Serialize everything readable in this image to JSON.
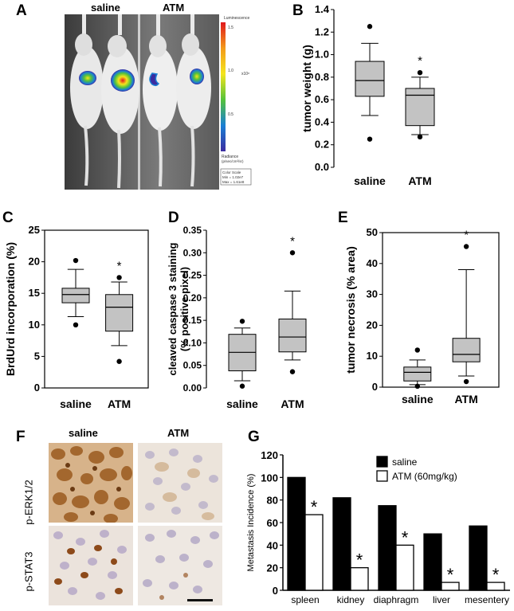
{
  "panels": {
    "A": {
      "letter": "A",
      "group_labels": [
        "saline",
        "ATM"
      ],
      "colorbar": {
        "title": "Luminescence",
        "ticks": [
          "1.5",
          "1.0",
          "0.5"
        ],
        "exponent_label": "x10⁸",
        "unit_title": "Radiance",
        "unit": "(p/sec/cm²/sr)",
        "colors": [
          "#e0181c",
          "#f39a1a",
          "#f4e51c",
          "#55c23a",
          "#1a7fd4",
          "#3b2ca0"
        ]
      },
      "color_scale_box": {
        "title": "Color Scale",
        "min": "Min = 1.02e7",
        "max": "Max = 1.61e8"
      }
    },
    "F": {
      "letter": "F",
      "col_labels": [
        "saline",
        "ATM"
      ],
      "row_labels": [
        "p-ERK1/2",
        "p-STAT3"
      ]
    }
  },
  "chart_data": [
    {
      "id": "B",
      "letter": "B",
      "type": "box",
      "ylabel": "tumor weight (g)",
      "ylim": [
        0.0,
        1.4
      ],
      "yticks": [
        "0.0",
        "0.2",
        "0.4",
        "0.6",
        "0.8",
        "1.0",
        "1.2",
        "1.4"
      ],
      "categories": [
        "saline",
        "ATM"
      ],
      "boxes": [
        {
          "q1": 0.63,
          "median": 0.77,
          "q3": 0.94,
          "whisker_low": 0.46,
          "whisker_high": 1.1,
          "outliers": [
            0.25,
            1.25
          ],
          "star": ""
        },
        {
          "q1": 0.37,
          "median": 0.64,
          "q3": 0.7,
          "whisker_low": 0.29,
          "whisker_high": 0.8,
          "outliers": [
            0.27,
            0.84
          ],
          "star": "*"
        }
      ],
      "frame": "open"
    },
    {
      "id": "C",
      "letter": "C",
      "type": "box",
      "ylabel": "BrdUrd incorporation (%)",
      "ylim": [
        0,
        25
      ],
      "yticks": [
        "0",
        "5",
        "10",
        "15",
        "20",
        "25"
      ],
      "categories": [
        "saline",
        "ATM"
      ],
      "boxes": [
        {
          "q1": 13.5,
          "median": 14.8,
          "q3": 15.8,
          "whisker_low": 11.3,
          "whisker_high": 18.8,
          "outliers": [
            10.0,
            20.2
          ],
          "star": ""
        },
        {
          "q1": 9.0,
          "median": 12.8,
          "q3": 14.8,
          "whisker_low": 6.7,
          "whisker_high": 16.8,
          "outliers": [
            4.2,
            17.5
          ],
          "star": "*"
        }
      ],
      "frame": "box"
    },
    {
      "id": "D",
      "letter": "D",
      "type": "box",
      "ylabel": "cleaved caspase 3 staining\n(% positive pixel)",
      "ylim": [
        0.0,
        0.35
      ],
      "yticks": [
        "0.00",
        "0.05",
        "0.10",
        "0.15",
        "0.20",
        "0.25",
        "0.30",
        "0.35"
      ],
      "categories": [
        "saline",
        "ATM"
      ],
      "boxes": [
        {
          "q1": 0.038,
          "median": 0.079,
          "q3": 0.119,
          "whisker_low": 0.016,
          "whisker_high": 0.133,
          "outliers": [
            0.004,
            0.148
          ],
          "star": ""
        },
        {
          "q1": 0.08,
          "median": 0.113,
          "q3": 0.153,
          "whisker_low": 0.062,
          "whisker_high": 0.215,
          "outliers": [
            0.036,
            0.3
          ],
          "star": "*"
        }
      ],
      "frame": "open"
    },
    {
      "id": "E",
      "letter": "E",
      "type": "box",
      "ylabel": "tumor necrosis (% area)",
      "ylim": [
        0,
        50
      ],
      "yticks": [
        "0",
        "10",
        "20",
        "30",
        "40",
        "50"
      ],
      "categories": [
        "saline",
        "ATM"
      ],
      "boxes": [
        {
          "q1": 2.0,
          "median": 4.8,
          "q3": 6.5,
          "whisker_low": 0.8,
          "whisker_high": 8.8,
          "outliers": [
            0.3,
            12.0
          ],
          "star": ""
        },
        {
          "q1": 8.2,
          "median": 10.6,
          "q3": 15.8,
          "whisker_low": 3.6,
          "whisker_high": 38.0,
          "outliers": [
            1.8,
            45.5
          ],
          "star": "*"
        }
      ],
      "frame": "box"
    },
    {
      "id": "G",
      "letter": "G",
      "type": "bar",
      "ylabel": "Metastasis Incidence (%)",
      "ylim": [
        0,
        120
      ],
      "yticks": [
        "0",
        "20",
        "40",
        "60",
        "80",
        "100",
        "120"
      ],
      "categories": [
        "spleen",
        "kidney",
        "diaphragm",
        "liver",
        "mesentery"
      ],
      "series": [
        {
          "name": "saline",
          "values": [
            100,
            82,
            75,
            50,
            57
          ],
          "color": "#000000"
        },
        {
          "name": "ATM (60mg/kg)",
          "values": [
            67,
            20,
            40,
            7,
            7
          ],
          "color": "#ffffff"
        }
      ],
      "stars": [
        "*",
        "*",
        "*",
        "*",
        "*"
      ],
      "legend": "top-right"
    }
  ]
}
